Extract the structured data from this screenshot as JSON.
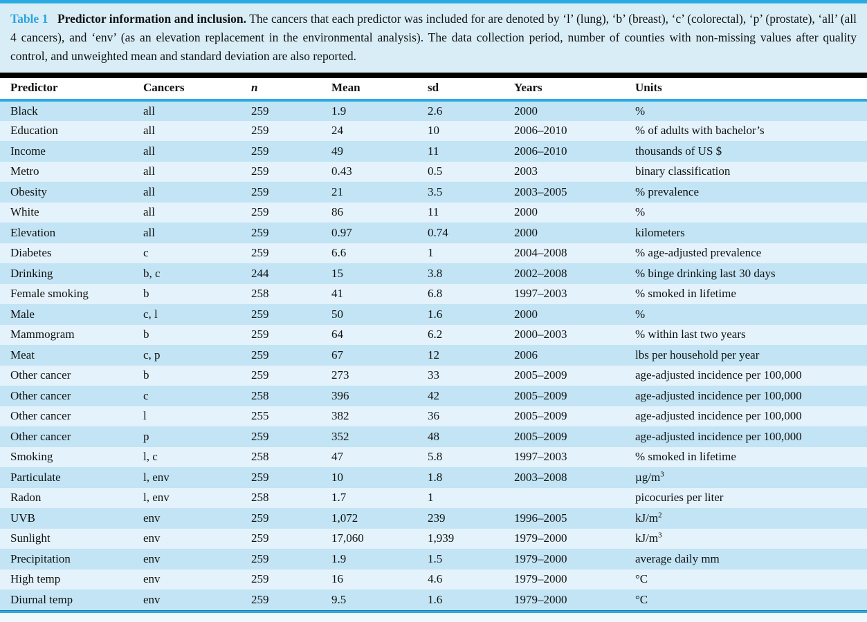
{
  "colors": {
    "accent_cyan": "#29abe2",
    "caption_background": "#d9edf7",
    "row_dark": "#c2e4f4",
    "row_light": "#e4f2fb",
    "separator_black": "#020202",
    "table_label_blue": "#2aa3de"
  },
  "caption": {
    "label": "Table 1",
    "title": "Predictor information and inclusion.",
    "text": "The cancers that each predictor was included for are denoted by ‘l’ (lung), ‘b’ (breast), ‘c’ (colorectal), ‘p’ (prostate), ‘all’ (all 4 cancers), and ‘env’ (as an elevation replacement in the environmental analysis). The data collection period, number of counties with non-missing values after quality control, and unweighted mean and standard deviation are also reported."
  },
  "table": {
    "columns": [
      "Predictor",
      "Cancers",
      "n",
      "Mean",
      "sd",
      "Years",
      "Units"
    ],
    "rows": [
      [
        "Black",
        "all",
        "259",
        "1.9",
        "2.6",
        "2000",
        "%"
      ],
      [
        "Education",
        "all",
        "259",
        "24",
        "10",
        "2006–2010",
        "% of adults with bachelor’s"
      ],
      [
        "Income",
        "all",
        "259",
        "49",
        "11",
        "2006–2010",
        "thousands of US $"
      ],
      [
        "Metro",
        "all",
        "259",
        "0.43",
        "0.5",
        "2003",
        "binary classification"
      ],
      [
        "Obesity",
        "all",
        "259",
        "21",
        "3.5",
        "2003–2005",
        "% prevalence"
      ],
      [
        "White",
        "all",
        "259",
        "86",
        "11",
        "2000",
        "%"
      ],
      [
        "Elevation",
        "all",
        "259",
        "0.97",
        "0.74",
        "2000",
        "kilometers"
      ],
      [
        "Diabetes",
        "c",
        "259",
        "6.6",
        "1",
        "2004–2008",
        "% age-adjusted prevalence"
      ],
      [
        "Drinking",
        "b, c",
        "244",
        "15",
        "3.8",
        "2002–2008",
        "% binge drinking last 30 days"
      ],
      [
        "Female smoking",
        "b",
        "258",
        "41",
        "6.8",
        "1997–2003",
        "% smoked in lifetime"
      ],
      [
        "Male",
        "c, l",
        "259",
        "50",
        "1.6",
        "2000",
        "%"
      ],
      [
        "Mammogram",
        "b",
        "259",
        "64",
        "6.2",
        "2000–2003",
        "% within last two years"
      ],
      [
        "Meat",
        "c, p",
        "259",
        "67",
        "12",
        "2006",
        "lbs per household per year"
      ],
      [
        "Other cancer",
        "b",
        "259",
        "273",
        "33",
        "2005–2009",
        "age-adjusted incidence per 100,000"
      ],
      [
        "Other cancer",
        "c",
        "258",
        "396",
        "42",
        "2005–2009",
        "age-adjusted incidence per 100,000"
      ],
      [
        "Other cancer",
        "l",
        "255",
        "382",
        "36",
        "2005–2009",
        "age-adjusted incidence per 100,000"
      ],
      [
        "Other cancer",
        "p",
        "259",
        "352",
        "48",
        "2005–2009",
        "age-adjusted incidence per 100,000"
      ],
      [
        "Smoking",
        "l, c",
        "258",
        "47",
        "5.8",
        "1997–2003",
        "% smoked in lifetime"
      ],
      [
        "Particulate",
        "l, env",
        "259",
        "10",
        "1.8",
        "2003–2008",
        "µg/m^3"
      ],
      [
        "Radon",
        "l, env",
        "258",
        "1.7",
        "1",
        "",
        "picocuries per liter"
      ],
      [
        "UVB",
        "env",
        "259",
        "1,072",
        "239",
        "1996–2005",
        "kJ/m^2"
      ],
      [
        "Sunlight",
        "env",
        "259",
        "17,060",
        "1,939",
        "1979–2000",
        "kJ/m^3"
      ],
      [
        "Precipitation",
        "env",
        "259",
        "1.9",
        "1.5",
        "1979–2000",
        "average daily mm"
      ],
      [
        "High temp",
        "env",
        "259",
        "16",
        "4.6",
        "1979–2000",
        "°C"
      ],
      [
        "Diurnal temp",
        "env",
        "259",
        "9.5",
        "1.6",
        "1979–2000",
        "°C"
      ]
    ]
  }
}
